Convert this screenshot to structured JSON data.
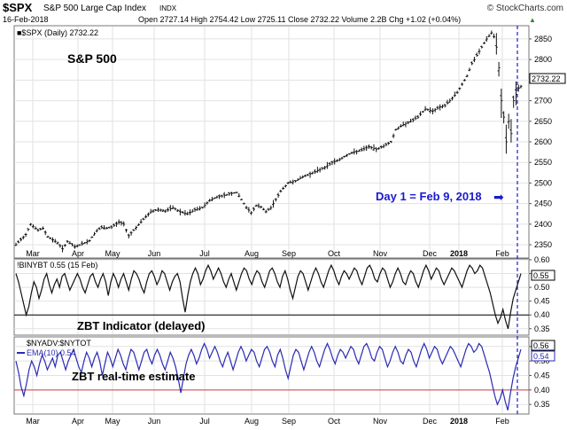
{
  "header": {
    "ticker": "$SPX",
    "name": "S&P 500 Large Cap Index",
    "exchange": "INDX",
    "date": "16-Feb-2018",
    "quote": "Open 2727.14  High 2754.42  Low 2725.11  Close 2732.22  Volume 2.2B  Chg +1.02 (+0.04%)",
    "quote_arrow": "▲",
    "source": "© StockCharts.com"
  },
  "chart_data": [
    {
      "type": "ohlc",
      "title": "S&P 500",
      "legend": "■$SPX (Daily) 2732.22",
      "last_value_label": "2732.22",
      "ylim": [
        2320,
        2880
      ],
      "y_ticks": [
        2350,
        2400,
        2450,
        2500,
        2550,
        2600,
        2650,
        2700,
        2750,
        2800,
        2850
      ],
      "x_tick_labels": [
        "Mar",
        "Apr",
        "May",
        "Jun",
        "Jul",
        "Aug",
        "Sep",
        "Oct",
        "Nov",
        "Dec",
        "2018",
        "Feb"
      ],
      "annotation": "Day 1 = Feb 9, 2018",
      "annotation_arrow": "➡",
      "series": [
        {
          "name": "$SPX",
          "points": [
            [
              0,
              2350
            ],
            [
              4,
              2375
            ],
            [
              6,
              2400
            ],
            [
              9,
              2385
            ],
            [
              11,
              2390
            ],
            [
              13,
              2370
            ],
            [
              15,
              2362
            ],
            [
              17,
              2355
            ],
            [
              19,
              2340
            ],
            [
              21,
              2358
            ],
            [
              24,
              2345
            ],
            [
              27,
              2352
            ],
            [
              30,
              2360
            ],
            [
              33,
              2385
            ],
            [
              35,
              2392
            ],
            [
              37,
              2390
            ],
            [
              39,
              2393
            ],
            [
              42,
              2405
            ],
            [
              44,
              2400
            ],
            [
              46,
              2372
            ],
            [
              49,
              2392
            ],
            [
              52,
              2412
            ],
            [
              55,
              2430
            ],
            [
              58,
              2436
            ],
            [
              61,
              2432
            ],
            [
              64,
              2440
            ],
            [
              67,
              2430
            ],
            [
              70,
              2425
            ],
            [
              73,
              2435
            ],
            [
              76,
              2440
            ],
            [
              79,
              2458
            ],
            [
              82,
              2466
            ],
            [
              85,
              2470
            ],
            [
              88,
              2475
            ],
            [
              90,
              2477
            ],
            [
              92,
              2460
            ],
            [
              94,
              2440
            ],
            [
              96,
              2428
            ],
            [
              98,
              2445
            ],
            [
              100,
              2442
            ],
            [
              102,
              2430
            ],
            [
              104,
              2440
            ],
            [
              106,
              2460
            ],
            [
              108,
              2480
            ],
            [
              111,
              2500
            ],
            [
              114,
              2505
            ],
            [
              117,
              2515
            ],
            [
              120,
              2522
            ],
            [
              123,
              2530
            ],
            [
              126,
              2538
            ],
            [
              129,
              2550
            ],
            [
              132,
              2557
            ],
            [
              135,
              2568
            ],
            [
              138,
              2575
            ],
            [
              141,
              2580
            ],
            [
              144,
              2588
            ],
            [
              147,
              2582
            ],
            [
              150,
              2590
            ],
            [
              153,
              2600
            ],
            [
              155,
              2630
            ],
            [
              158,
              2642
            ],
            [
              161,
              2650
            ],
            [
              164,
              2660
            ],
            [
              167,
              2680
            ],
            [
              170,
              2675
            ],
            [
              173,
              2685
            ],
            [
              175,
              2688
            ],
            [
              177,
              2700
            ],
            [
              180,
              2720
            ],
            [
              182,
              2740
            ],
            [
              184,
              2760
            ],
            [
              186,
              2790
            ],
            [
              188,
              2810
            ],
            [
              190,
              2830
            ],
            [
              192,
              2850
            ],
            [
              194,
              2865
            ],
            [
              195,
              2855
            ],
            [
              196,
              2830
            ],
            [
              197,
              2780
            ],
            [
              198,
              2700
            ],
            [
              199,
              2660
            ],
            [
              200,
              2600
            ],
            [
              201,
              2650
            ],
            [
              202,
              2620
            ],
            [
              203,
              2700
            ],
            [
              204,
              2715
            ],
            [
              205,
              2730
            ],
            [
              206,
              2735
            ]
          ]
        }
      ]
    },
    {
      "type": "line",
      "title": "ZBT Indicator (delayed)",
      "legend": "!BINYBT 0.55 (15 Feb)",
      "last_value_label": "0.55",
      "ylim": [
        0.33,
        0.6
      ],
      "y_ticks": [
        0.35,
        0.4,
        0.45,
        0.5,
        0.55,
        0.6
      ],
      "y_tick_labels": [
        "0.35",
        "0.40",
        "0.45",
        "0.50",
        "0.55",
        "0.60"
      ],
      "threshold": 0.4,
      "series": [
        {
          "name": "!BINYBT",
          "values": [
            0.55,
            0.52,
            0.48,
            0.44,
            0.4,
            0.43,
            0.48,
            0.52,
            0.5,
            0.46,
            0.49,
            0.53,
            0.55,
            0.51,
            0.48,
            0.51,
            0.53,
            0.5,
            0.54,
            0.55,
            0.52,
            0.49,
            0.51,
            0.53,
            0.55,
            0.53,
            0.5,
            0.48,
            0.51,
            0.54,
            0.55,
            0.52,
            0.5,
            0.53,
            0.55,
            0.52,
            0.47,
            0.52,
            0.55,
            0.53,
            0.5,
            0.53,
            0.55,
            0.52,
            0.49,
            0.53,
            0.56,
            0.55,
            0.53,
            0.5,
            0.48,
            0.52,
            0.55,
            0.56,
            0.54,
            0.51,
            0.53,
            0.56,
            0.55,
            0.52,
            0.49,
            0.52,
            0.54,
            0.55,
            0.52,
            0.46,
            0.41,
            0.47,
            0.52,
            0.55,
            0.57,
            0.55,
            0.51,
            0.53,
            0.56,
            0.58,
            0.56,
            0.53,
            0.55,
            0.57,
            0.55,
            0.52,
            0.5,
            0.53,
            0.55,
            0.52,
            0.49,
            0.52,
            0.55,
            0.57,
            0.56,
            0.53,
            0.51,
            0.54,
            0.56,
            0.55,
            0.52,
            0.5,
            0.53,
            0.56,
            0.57,
            0.55,
            0.52,
            0.5,
            0.54,
            0.56,
            0.53,
            0.49,
            0.46,
            0.5,
            0.54,
            0.56,
            0.55,
            0.52,
            0.49,
            0.52,
            0.55,
            0.57,
            0.55,
            0.52,
            0.5,
            0.53,
            0.56,
            0.58,
            0.56,
            0.53,
            0.51,
            0.54,
            0.56,
            0.55,
            0.53,
            0.55,
            0.57,
            0.56,
            0.53,
            0.51,
            0.54,
            0.57,
            0.58,
            0.56,
            0.53,
            0.52,
            0.55,
            0.57,
            0.56,
            0.53,
            0.5,
            0.52,
            0.55,
            0.57,
            0.55,
            0.52,
            0.51,
            0.54,
            0.56,
            0.55,
            0.52,
            0.5,
            0.53,
            0.56,
            0.58,
            0.56,
            0.53,
            0.55,
            0.57,
            0.56,
            0.53,
            0.51,
            0.53,
            0.55,
            0.57,
            0.56,
            0.54,
            0.52,
            0.5,
            0.53,
            0.56,
            0.58,
            0.57,
            0.55,
            0.56,
            0.58,
            0.57,
            0.54,
            0.51,
            0.48,
            0.44,
            0.4,
            0.37,
            0.39,
            0.42,
            0.38,
            0.35,
            0.41,
            0.46,
            0.49,
            0.52,
            0.55
          ]
        }
      ]
    },
    {
      "type": "line",
      "title": "ZBT real-time estimate",
      "legend_1": "$NYADV:$NYTOT",
      "legend_2": "EMA(10) 0.54",
      "last_value_label": "0.56",
      "last_value_label_2": "0.54",
      "ylim": [
        0.32,
        0.58
      ],
      "y_ticks": [
        0.35,
        0.4,
        0.45,
        0.5,
        0.55
      ],
      "y_tick_labels": [
        "0.35",
        "0.40",
        "0.45",
        "0.50",
        "0.55"
      ],
      "threshold": 0.4,
      "x_tick_labels": [
        "Mar",
        "Apr",
        "May",
        "Jun",
        "Jul",
        "Aug",
        "Sep",
        "Oct",
        "Nov",
        "Dec",
        "2018",
        "Feb"
      ],
      "series": [
        {
          "name": "EMA(10)",
          "values": [
            0.5,
            0.46,
            0.41,
            0.38,
            0.42,
            0.47,
            0.5,
            0.48,
            0.45,
            0.49,
            0.52,
            0.5,
            0.47,
            0.49,
            0.51,
            0.48,
            0.52,
            0.53,
            0.5,
            0.47,
            0.5,
            0.52,
            0.54,
            0.51,
            0.48,
            0.46,
            0.5,
            0.53,
            0.51,
            0.48,
            0.51,
            0.53,
            0.5,
            0.45,
            0.49,
            0.53,
            0.51,
            0.48,
            0.51,
            0.54,
            0.52,
            0.49,
            0.47,
            0.51,
            0.54,
            0.53,
            0.5,
            0.47,
            0.5,
            0.53,
            0.54,
            0.51,
            0.49,
            0.52,
            0.54,
            0.52,
            0.49,
            0.47,
            0.5,
            0.53,
            0.51,
            0.48,
            0.44,
            0.39,
            0.44,
            0.49,
            0.52,
            0.54,
            0.52,
            0.49,
            0.51,
            0.54,
            0.56,
            0.54,
            0.51,
            0.53,
            0.55,
            0.53,
            0.5,
            0.48,
            0.51,
            0.53,
            0.5,
            0.47,
            0.5,
            0.53,
            0.55,
            0.53,
            0.5,
            0.52,
            0.54,
            0.53,
            0.5,
            0.48,
            0.51,
            0.54,
            0.55,
            0.53,
            0.5,
            0.48,
            0.52,
            0.54,
            0.51,
            0.47,
            0.44,
            0.48,
            0.52,
            0.54,
            0.53,
            0.5,
            0.47,
            0.5,
            0.53,
            0.55,
            0.53,
            0.5,
            0.48,
            0.51,
            0.54,
            0.56,
            0.54,
            0.51,
            0.49,
            0.52,
            0.54,
            0.53,
            0.51,
            0.53,
            0.55,
            0.54,
            0.51,
            0.49,
            0.52,
            0.55,
            0.56,
            0.54,
            0.51,
            0.5,
            0.53,
            0.55,
            0.54,
            0.51,
            0.48,
            0.5,
            0.53,
            0.55,
            0.53,
            0.5,
            0.49,
            0.52,
            0.54,
            0.53,
            0.5,
            0.48,
            0.51,
            0.54,
            0.56,
            0.54,
            0.51,
            0.53,
            0.55,
            0.54,
            0.51,
            0.49,
            0.51,
            0.53,
            0.55,
            0.54,
            0.52,
            0.5,
            0.48,
            0.51,
            0.54,
            0.56,
            0.55,
            0.53,
            0.54,
            0.56,
            0.55,
            0.52,
            0.49,
            0.46,
            0.42,
            0.38,
            0.35,
            0.37,
            0.4,
            0.36,
            0.33,
            0.39,
            0.44,
            0.48,
            0.51,
            0.54
          ]
        }
      ]
    }
  ],
  "colors": {
    "price": "#111111",
    "zbt_line": "#111111",
    "ema_line": "#2a2ab4",
    "threshold_black": "#000000",
    "threshold_red": "#d23c3c",
    "annotation": "#1a1ad0",
    "grid": "#d9d9d9"
  }
}
